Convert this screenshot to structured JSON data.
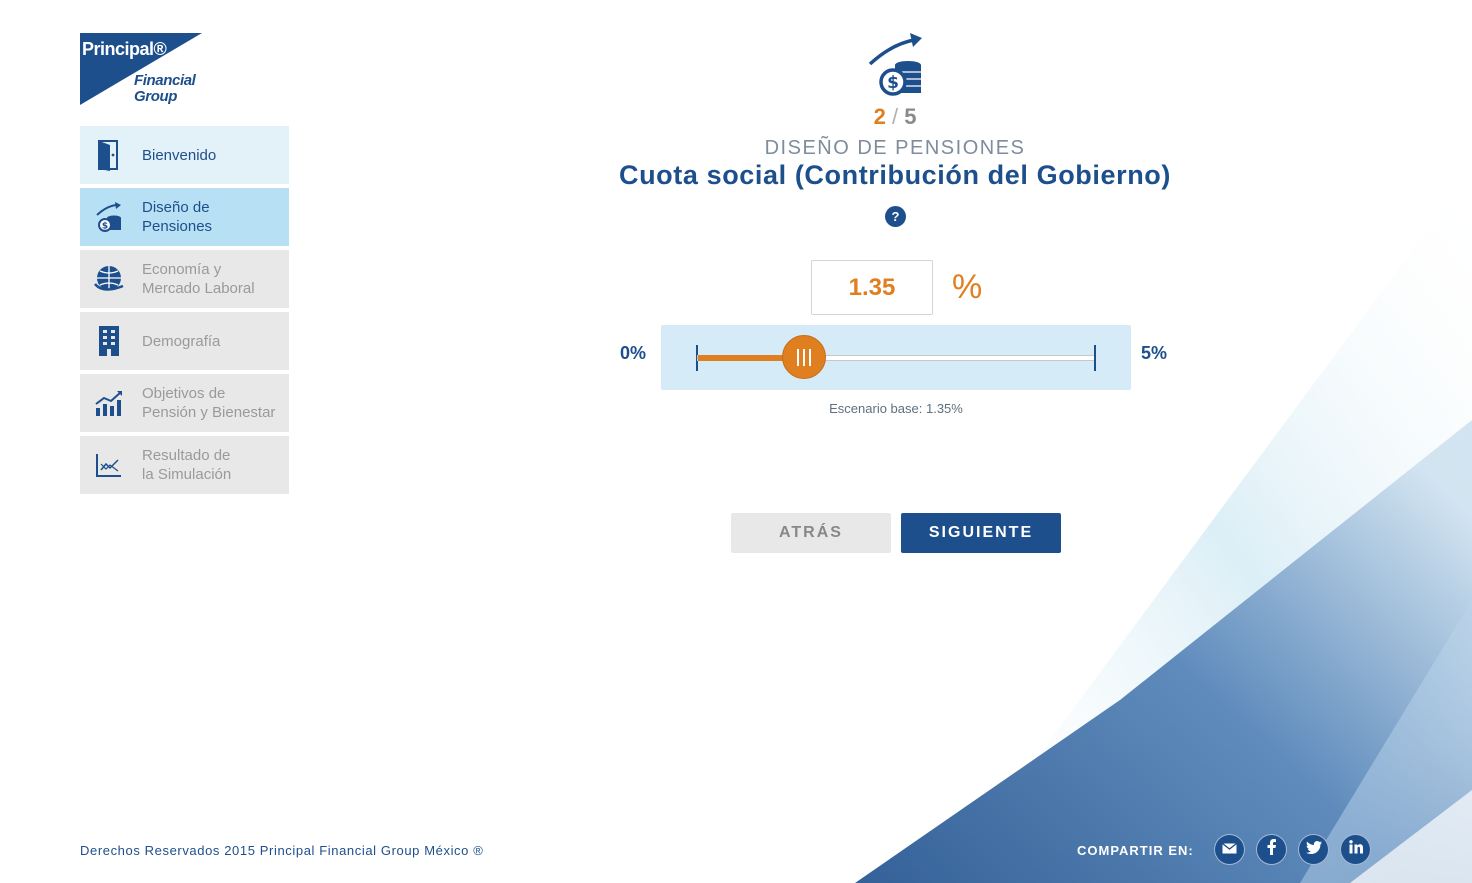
{
  "brand": {
    "logo_line1": "Principal®",
    "logo_line2": "Financial\nGroup",
    "color_primary": "#1d4f8c",
    "color_accent": "#e07f1f"
  },
  "sidebar": {
    "items": [
      {
        "label": "Bienvenido",
        "icon": "door-icon",
        "state": "visited"
      },
      {
        "label": "Diseño de\nPensiones",
        "icon": "coins-growth-icon",
        "state": "active"
      },
      {
        "label": "Economía y\nMercado Laboral",
        "icon": "globe-icon",
        "state": "inactive"
      },
      {
        "label": "Demografía",
        "icon": "building-icon",
        "state": "inactive"
      },
      {
        "label": "Objetivos de\nPensión y Bienestar",
        "icon": "bar-chart-icon",
        "state": "inactive"
      },
      {
        "label": "Resultado de\nla Simulación",
        "icon": "line-chart-icon",
        "state": "inactive"
      }
    ]
  },
  "main": {
    "header_icon": "coins-growth-icon",
    "step_current": "2",
    "step_separator": "/",
    "step_total": "5",
    "section": "DISEÑO DE PENSIONES",
    "title": "Cuota social (Contribución del Gobierno)",
    "help_label": "?",
    "value": "1.35",
    "unit": "%",
    "slider": {
      "min_label": "0%",
      "max_label": "5%",
      "min": 0,
      "max": 5,
      "value": 1.35
    },
    "base_scenario": "Escenario base: 1.35%",
    "back_label": "ATRÁS",
    "next_label": "SIGUIENTE"
  },
  "footer": {
    "copyright": "Derechos Reservados 2015 Principal Financial Group México ®",
    "share_label": "COMPARTIR EN:",
    "social": [
      "email-icon",
      "facebook-icon",
      "twitter-icon",
      "linkedin-icon"
    ]
  }
}
